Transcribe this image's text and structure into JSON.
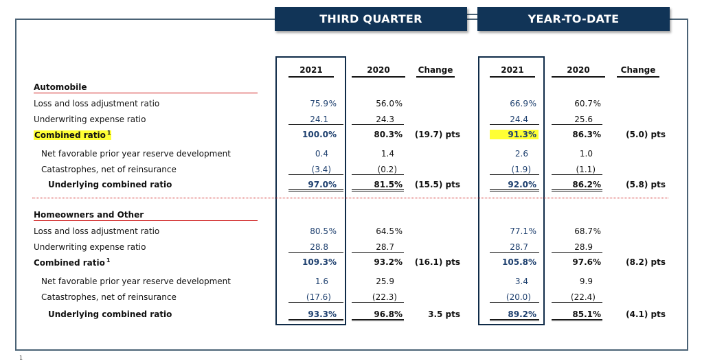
{
  "headers": {
    "third_quarter": "THIRD QUARTER",
    "year_to_date": "YEAR-TO-DATE"
  },
  "columns": {
    "q2021": "2021",
    "q2020": "2020",
    "qchange": "Change",
    "y2021": "2021",
    "y2020": "2020",
    "ychange": "Change"
  },
  "auto": {
    "title": "Automobile",
    "loss_label": "Loss and loss adjustment ratio",
    "uw_label": "Underwriting expense ratio",
    "comb_label": "Combined ratio",
    "comb_sup": "1",
    "npy_label": "Net favorable prior year reserve development",
    "cat_label": "Catastrophes, net of reinsurance",
    "und_label": "Underlying combined ratio",
    "loss": {
      "q21": "75.9",
      "q20": "56.0",
      "y21": "66.9",
      "y20": "60.7"
    },
    "uw": {
      "q21": "24.1",
      "q20": "24.3",
      "y21": "24.4",
      "y20": "25.6"
    },
    "comb": {
      "q21": "100.0",
      "q20": "80.3",
      "qchg": "(19.7) pts",
      "y21": "91.3",
      "y20": "86.3",
      "ychg": "(5.0) pts"
    },
    "npy": {
      "q21": "0.4",
      "q20": "1.4",
      "y21": "2.6",
      "y20": "1.0"
    },
    "cat": {
      "q21": "(3.4)",
      "q20": "(0.2)",
      "y21": "(1.9)",
      "y20": "(1.1)"
    },
    "und": {
      "q21": "97.0",
      "q20": "81.5",
      "qchg": "(15.5) pts",
      "y21": "92.0",
      "y20": "86.2",
      "ychg": "(5.8) pts"
    }
  },
  "home": {
    "title": "Homeowners and Other",
    "loss_label": "Loss and loss adjustment ratio",
    "uw_label": "Underwriting expense ratio",
    "comb_label": "Combined ratio",
    "comb_sup": "1",
    "npy_label": "Net favorable prior year reserve development",
    "cat_label": "Catastrophes, net of reinsurance",
    "und_label": "Underlying combined ratio",
    "loss": {
      "q21": "80.5",
      "q20": "64.5",
      "y21": "77.1",
      "y20": "68.7"
    },
    "uw": {
      "q21": "28.8",
      "q20": "28.7",
      "y21": "28.7",
      "y20": "28.9"
    },
    "comb": {
      "q21": "109.3",
      "q20": "93.2",
      "qchg": "(16.1) pts",
      "y21": "105.8",
      "y20": "97.6",
      "ychg": "(8.2) pts"
    },
    "npy": {
      "q21": "1.6",
      "q20": "25.9",
      "y21": "3.4",
      "y20": "9.9"
    },
    "cat": {
      "q21": "(17.6)",
      "q20": "(22.3)",
      "y21": "(20.0)",
      "y20": "(22.4)"
    },
    "und": {
      "q21": "93.3",
      "q20": "96.8",
      "qchg": "3.5 pts",
      "y21": "89.2",
      "y20": "85.1",
      "ychg": "(4.1) pts"
    }
  },
  "pct": "%",
  "footer_mark": "1"
}
